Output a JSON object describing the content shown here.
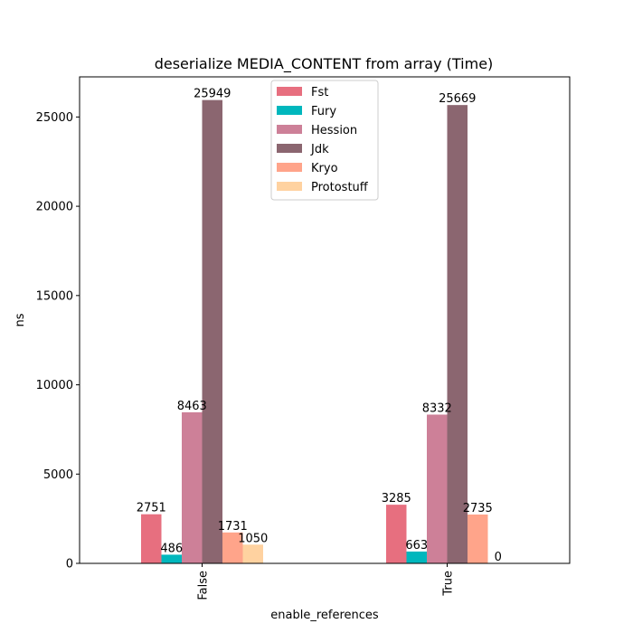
{
  "chart_data": {
    "type": "bar",
    "title": "deserialize MEDIA_CONTENT from array (Time)",
    "xlabel": "enable_references",
    "ylabel": "ns",
    "categories": [
      "False",
      "True"
    ],
    "ylim": [
      0,
      27247
    ],
    "yticks": [
      0,
      5000,
      10000,
      15000,
      20000,
      25000
    ],
    "legend_position": "upper center",
    "grid": false,
    "series": [
      {
        "name": "Fst",
        "color": "#e76f7f",
        "values": [
          2751,
          3285
        ]
      },
      {
        "name": "Fury",
        "color": "#00b7bd",
        "values": [
          486,
          663
        ]
      },
      {
        "name": "Hession",
        "color": "#cd8098",
        "values": [
          8463,
          8332
        ]
      },
      {
        "name": "Jdk",
        "color": "#8b6670",
        "values": [
          25949,
          25669
        ]
      },
      {
        "name": "Kryo",
        "color": "#ffa48a",
        "values": [
          1731,
          2735
        ]
      },
      {
        "name": "Protostuff",
        "color": "#ffd2a0",
        "values": [
          1050,
          0
        ]
      }
    ]
  }
}
